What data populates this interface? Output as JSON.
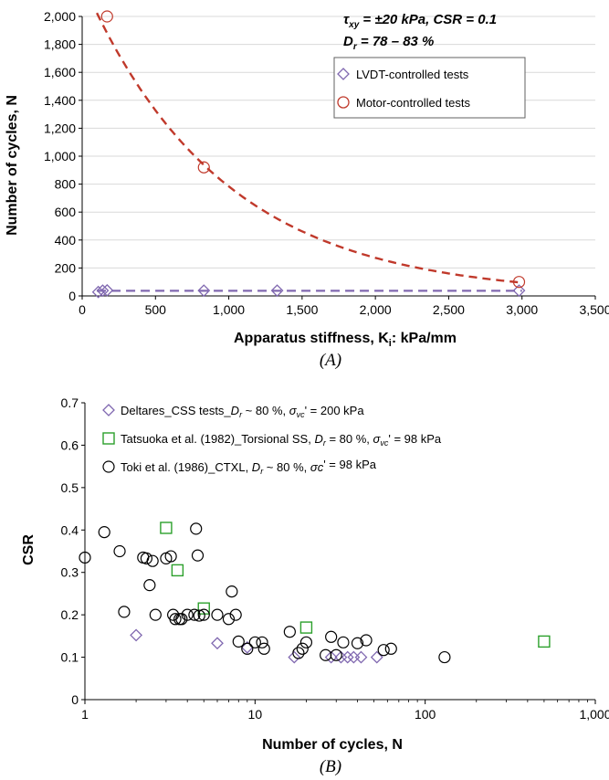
{
  "chart_data": [
    {
      "type": "scatter",
      "panel_label": "(A)",
      "xlabel": "Apparatus stiffness, K",
      "xlabel_sub": "i",
      "xlabel_tail": ": kPa/mm",
      "ylabel": "Number of cycles, N",
      "xlim": [
        0,
        3500
      ],
      "ylim": [
        0,
        2000
      ],
      "x_ticks": [
        0,
        500,
        1000,
        1500,
        2000,
        2500,
        3000,
        3500
      ],
      "x_tick_labels": [
        "0",
        "500",
        "1,000",
        "1,500",
        "2,000",
        "2,500",
        "3,000",
        "3,500"
      ],
      "y_ticks": [
        0,
        200,
        400,
        600,
        800,
        1000,
        1200,
        1400,
        1600,
        1800,
        2000
      ],
      "y_tick_labels": [
        "0",
        "200",
        "400",
        "600",
        "800",
        "1,000",
        "1,200",
        "1,400",
        "1,600",
        "1,800",
        "2,000"
      ],
      "annotations": {
        "line1_tau": "τ",
        "line1_sub": "xy",
        "line1_rest": " = ±20 kPa, CSR = 0.1",
        "line2_d": "D",
        "line2_sub": "r",
        "line2_rest": " = 78 – 83 %"
      },
      "legend_position": "top-right",
      "series": [
        {
          "name": "LVDT-controlled tests",
          "marker": "diamond",
          "color": "#8068b0",
          "x": [
            110,
            140,
            170,
            830,
            1330,
            2980
          ],
          "y": [
            28,
            38,
            40,
            38,
            38,
            38
          ],
          "fit_line": {
            "style": "dashed",
            "x": [
              100,
              3000
            ],
            "y": [
              37,
              37
            ]
          }
        },
        {
          "name": "Motor-controlled tests",
          "marker": "circle",
          "color": "#c0392b",
          "x": [
            170,
            830,
            2980
          ],
          "y": [
            2000,
            920,
            100
          ],
          "fit_line": {
            "style": "dashed",
            "type": "exponential",
            "a": 2250,
            "b": 0.001055,
            "x_range": [
              100,
              3000
            ]
          }
        }
      ]
    },
    {
      "type": "scatter",
      "panel_label": "(B)",
      "xlabel": "Number of cycles, N",
      "ylabel": "CSR",
      "x_scale": "log",
      "xlim": [
        1,
        1000
      ],
      "ylim": [
        0,
        0.7
      ],
      "x_ticks": [
        1,
        10,
        100,
        1000
      ],
      "x_tick_labels": [
        "1",
        "10",
        "100",
        "1,000"
      ],
      "y_ticks": [
        0,
        0.1,
        0.2,
        0.3,
        0.4,
        0.5,
        0.6,
        0.7
      ],
      "y_tick_labels": [
        "0",
        "0.1",
        "0.2",
        "0.3",
        "0.4",
        "0.5",
        "0.6",
        "0.7"
      ],
      "legend_position": "top-left",
      "series": [
        {
          "name": "Deltares_CSS tests_D",
          "legend_parts": {
            "a": "Deltares_CSS tests_",
            "b": "D",
            "c": "r",
            "d": " ~ 80 %, ",
            "e": "σ",
            "f": "vc",
            "g": "' = 200 kPa"
          },
          "marker": "diamond",
          "color": "#8068b0",
          "x": [
            2,
            6,
            9,
            17,
            28,
            32,
            35,
            38,
            42,
            52
          ],
          "y": [
            0.152,
            0.133,
            0.123,
            0.1,
            0.1,
            0.1,
            0.1,
            0.1,
            0.1,
            0.1
          ]
        },
        {
          "name": "Tatsuoka et al. (1982)_Torsional SS",
          "legend_parts": {
            "a": "Tatsuoka et al. (1982)_Torsional SS, ",
            "b": "D",
            "c": "r",
            "d": " = 80 %, ",
            "e": "σ",
            "f": "vc",
            "g": "' = 98 kPa"
          },
          "marker": "square",
          "color": "#2ca02c",
          "x": [
            3,
            3.5,
            5,
            20,
            500
          ],
          "y": [
            0.405,
            0.305,
            0.215,
            0.17,
            0.137
          ]
        },
        {
          "name": "Toki et al. (1986)_CTXL",
          "legend_parts": {
            "a": "Toki et al. (1986)_CTXL, ",
            "b": "D",
            "c": "r",
            "d": " ~ 80 %, ",
            "e": "σc",
            "f": "",
            "g": "' = 98 kPa"
          },
          "marker": "circle",
          "color": "#000000",
          "x": [
            1,
            1.3,
            1.6,
            1.7,
            2.2,
            2.3,
            2.4,
            2.5,
            2.6,
            3,
            3.2,
            3.3,
            3.4,
            3.6,
            3.7,
            4,
            4.4,
            4.5,
            4.6,
            4.7,
            5,
            6,
            7,
            7.3,
            7.7,
            8,
            9,
            10,
            11,
            11.3,
            16,
            18,
            19,
            20,
            26,
            28,
            30,
            33,
            40,
            45,
            57,
            63,
            130
          ],
          "y": [
            0.335,
            0.395,
            0.35,
            0.207,
            0.335,
            0.333,
            0.27,
            0.327,
            0.2,
            0.333,
            0.338,
            0.2,
            0.19,
            0.19,
            0.19,
            0.2,
            0.2,
            0.403,
            0.34,
            0.198,
            0.2,
            0.2,
            0.19,
            0.255,
            0.2,
            0.137,
            0.12,
            0.135,
            0.135,
            0.12,
            0.16,
            0.11,
            0.12,
            0.135,
            0.105,
            0.148,
            0.105,
            0.135,
            0.133,
            0.14,
            0.117,
            0.12,
            0.1
          ]
        }
      ]
    }
  ]
}
